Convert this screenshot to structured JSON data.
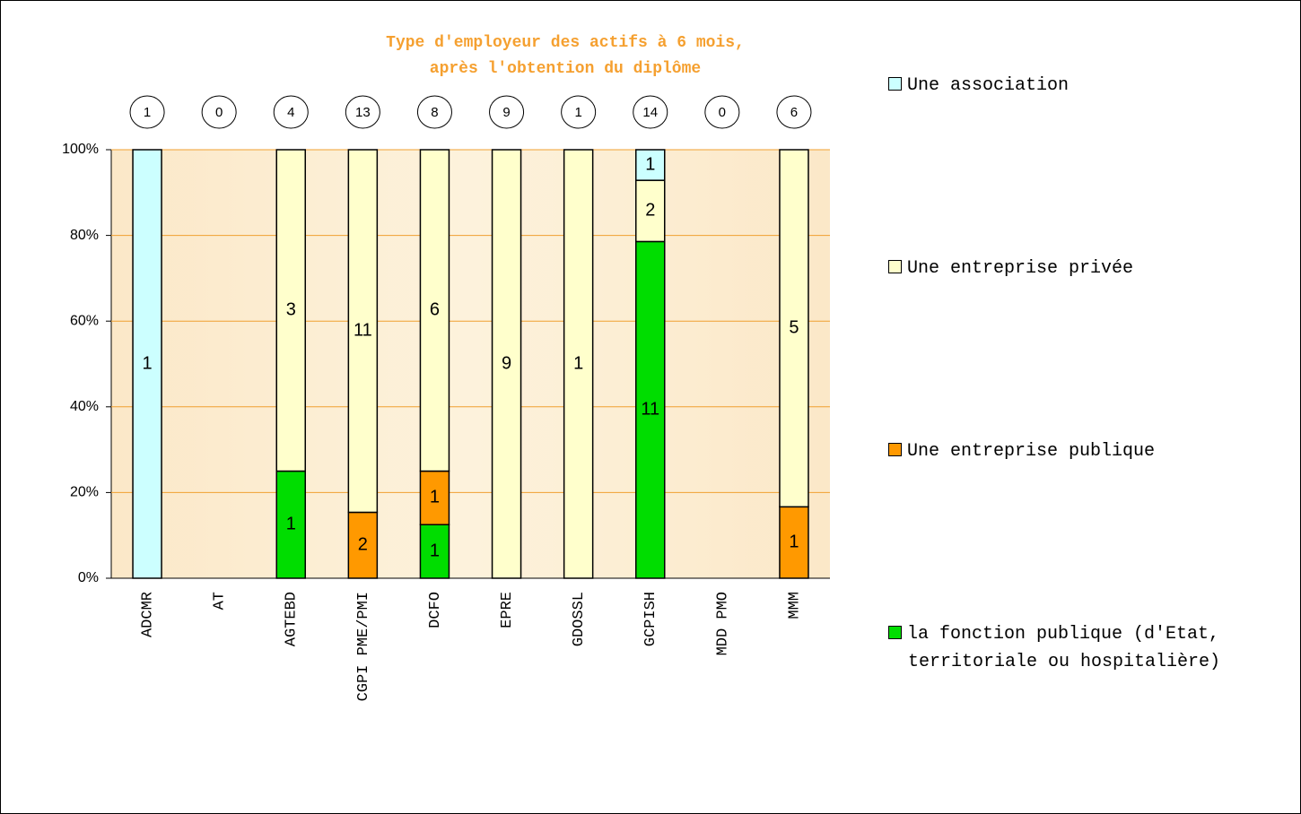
{
  "chart_data": {
    "type": "bar",
    "stacking": "percent",
    "title": "Type d'employeur des actifs à 6 mois, après l'obtention du diplôme",
    "categories": [
      "ADCMR",
      "AT",
      "AGTEBD",
      "CGPI PME/PMI",
      "DCFO",
      "EPRE",
      "GDOSSL",
      "GCPISH",
      "MDD PMO",
      "MMM"
    ],
    "totals": [
      1,
      0,
      4,
      13,
      8,
      9,
      1,
      14,
      0,
      6
    ],
    "series": [
      {
        "name": "la fonction publique (d'Etat, territoriale ou hospitalière)",
        "color": "#00dd00",
        "values": [
          0,
          0,
          1,
          0,
          1,
          0,
          0,
          11,
          0,
          0
        ]
      },
      {
        "name": "Une entreprise publique",
        "color": "#ff9900",
        "values": [
          0,
          0,
          0,
          2,
          1,
          0,
          0,
          0,
          0,
          1
        ]
      },
      {
        "name": "Une entreprise privée",
        "color": "#ffffcc",
        "values": [
          0,
          0,
          3,
          11,
          6,
          9,
          1,
          2,
          0,
          5
        ]
      },
      {
        "name": "Une association",
        "color": "#ccffff",
        "values": [
          1,
          0,
          0,
          0,
          0,
          0,
          0,
          1,
          0,
          0
        ]
      }
    ],
    "ylim": [
      0,
      100
    ],
    "yticks": [
      {
        "value": 0,
        "label": "0%"
      },
      {
        "value": 20,
        "label": "20%"
      },
      {
        "value": 40,
        "label": "40%"
      },
      {
        "value": 60,
        "label": "60%"
      },
      {
        "value": 80,
        "label": "80%"
      },
      {
        "value": 100,
        "label": "100%"
      }
    ],
    "grid": true,
    "legend": "right"
  }
}
